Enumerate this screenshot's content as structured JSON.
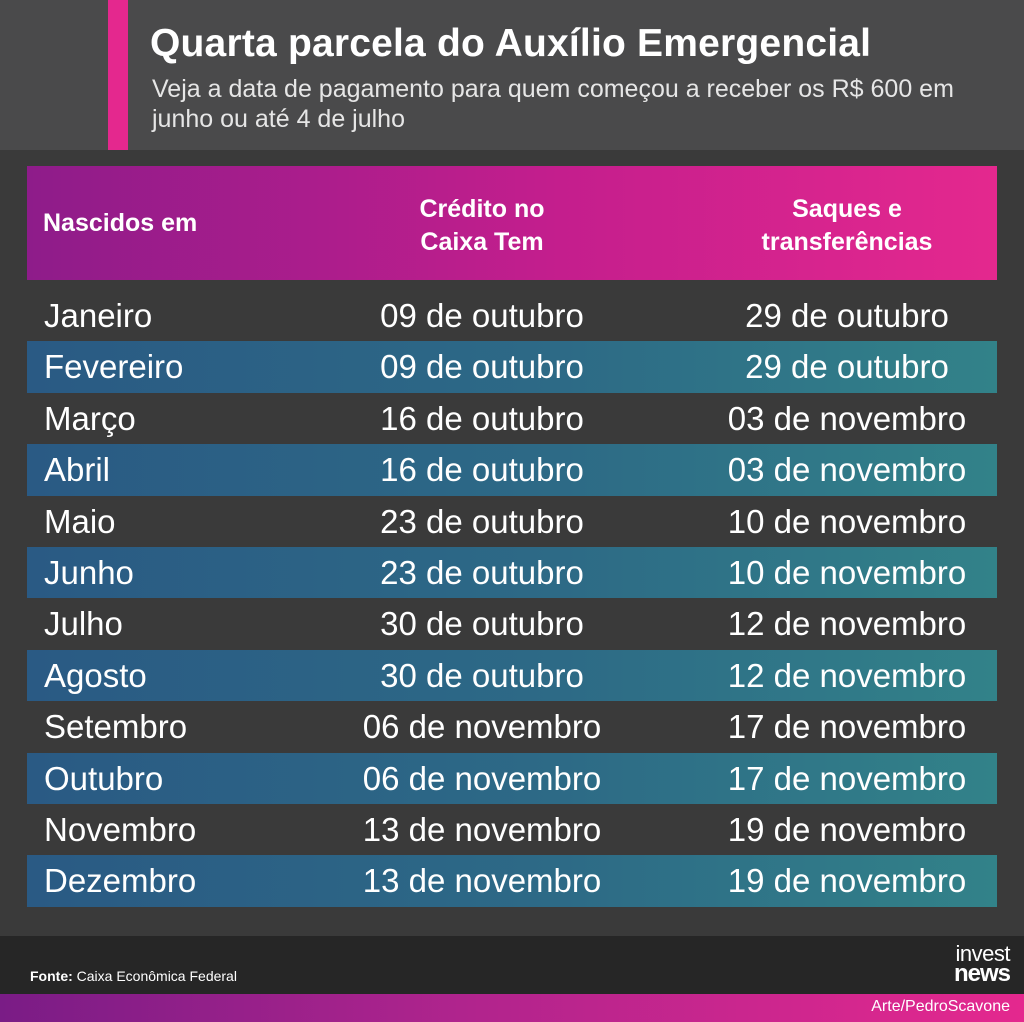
{
  "header": {
    "title": "Quarta parcela do Auxílio Emergencial",
    "subtitle": "Veja a data de pagamento para quem começou a receber os R$ 600 em junho ou até 4 de julho"
  },
  "table": {
    "columns": {
      "birth": "Nascidos em",
      "credit_line1": "Crédito no",
      "credit_line2": "Caixa Tem",
      "withdraw_line1": "Saques e",
      "withdraw_line2": "transferências"
    },
    "rows": [
      {
        "month": "Janeiro",
        "credit": "09 de outubro",
        "withdraw": "29 de outubro"
      },
      {
        "month": "Fevereiro",
        "credit": "09 de outubro",
        "withdraw": "29 de outubro"
      },
      {
        "month": "Março",
        "credit": "16 de outubro",
        "withdraw": "03 de novembro"
      },
      {
        "month": "Abril",
        "credit": "16 de outubro",
        "withdraw": "03 de novembro"
      },
      {
        "month": "Maio",
        "credit": "23 de outubro",
        "withdraw": "10 de novembro"
      },
      {
        "month": "Junho",
        "credit": "23 de outubro",
        "withdraw": "10 de novembro"
      },
      {
        "month": "Julho",
        "credit": "30 de outubro",
        "withdraw": "12 de novembro"
      },
      {
        "month": "Agosto",
        "credit": "30 de outubro",
        "withdraw": "12 de novembro"
      },
      {
        "month": "Setembro",
        "credit": "06 de novembro",
        "withdraw": "17 de novembro"
      },
      {
        "month": "Outubro",
        "credit": "06 de novembro",
        "withdraw": "17 de novembro"
      },
      {
        "month": "Novembro",
        "credit": "13 de novembro",
        "withdraw": "19 de novembro"
      },
      {
        "month": "Dezembro",
        "credit": "13 de novembro",
        "withdraw": "19 de novembro"
      }
    ]
  },
  "footer": {
    "source_label": "Fonte:",
    "source_value": "Caixa Econômica Federal",
    "logo_top": "invest",
    "logo_bottom": "news",
    "art_credit": "Arte/PedroScavone"
  },
  "colors": {
    "accent": "#e4288e",
    "header_bg": "#4a4a4b",
    "body_bg": "#3a3a3a",
    "stripe": "#2d6a86"
  }
}
